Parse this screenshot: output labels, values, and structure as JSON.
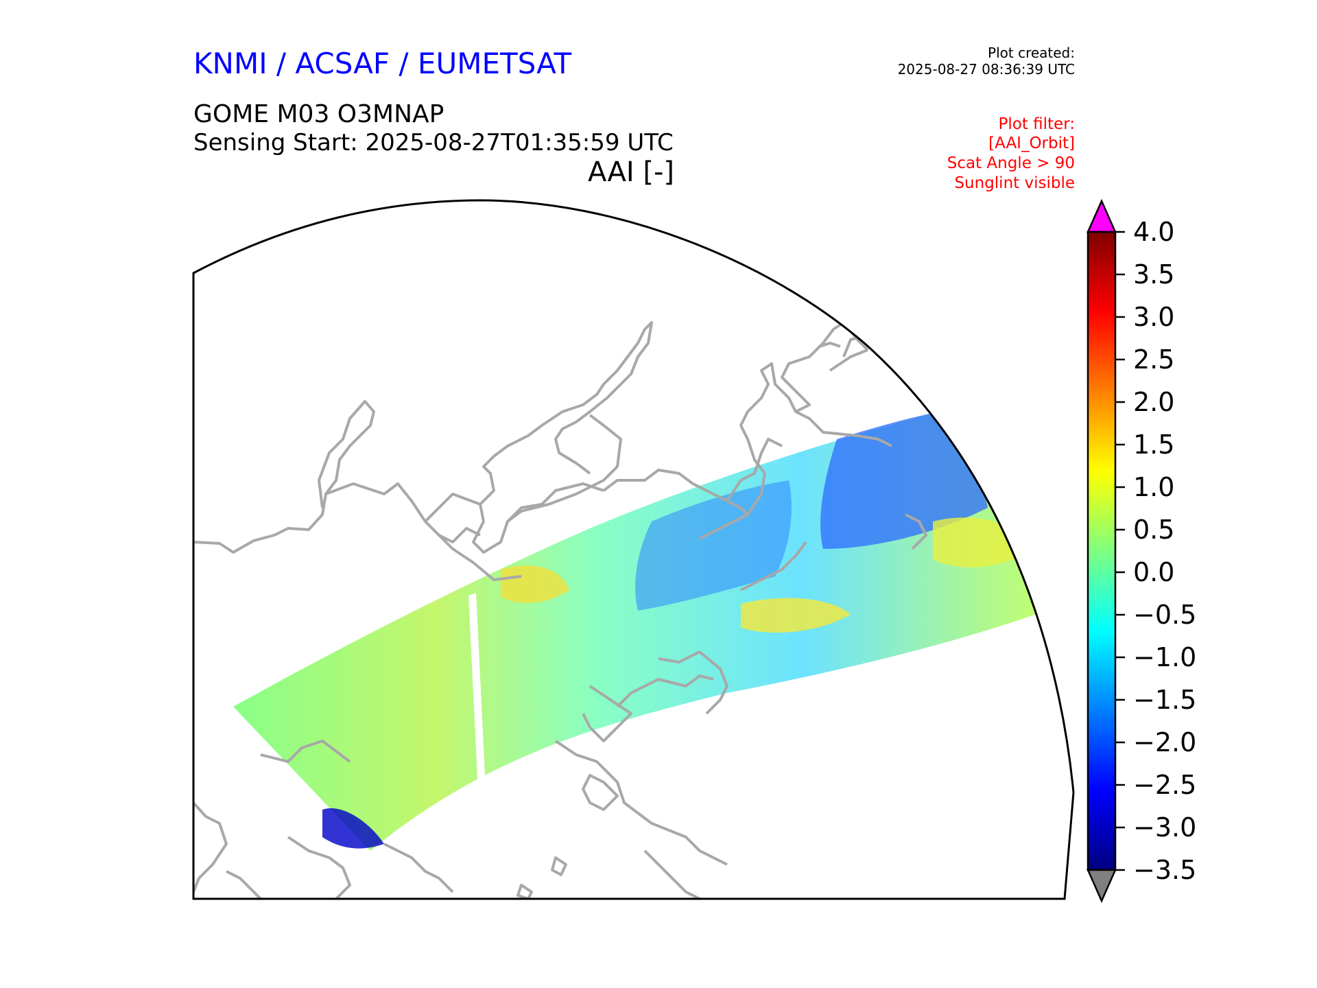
{
  "header": {
    "organisation": "KNMI / ACSAF / EUMETSAT",
    "plot_created_label": "Plot created:",
    "plot_created_time": "2025-08-27 08:36:39 UTC",
    "product": "GOME M03 O3MNAP",
    "sensing_start": "Sensing Start: 2025-08-27T01:35:59 UTC",
    "variable": "AAI [-]",
    "filter_lines": [
      "Plot filter:",
      "[AAI_Orbit]",
      "Scat Angle > 90",
      "Sunglint visible"
    ]
  },
  "colors": {
    "org_title": "#0000ff",
    "filter_text": "#ff0000",
    "coastline": "#a8a8a8",
    "over_range": "#ff00ff",
    "under_range": "#808080",
    "colormap": [
      "#00007f",
      "#0000ff",
      "#007fff",
      "#00ffff",
      "#7fff7f",
      "#ffff00",
      "#ff7f00",
      "#ff0000",
      "#7f0000"
    ]
  },
  "chart_data": {
    "type": "heatmap",
    "colorbar": {
      "label": "AAI [-]",
      "min": -3.5,
      "max": 4.0,
      "ticks": [
        "4.0",
        "3.5",
        "3.0",
        "2.5",
        "2.0",
        "1.5",
        "1.0",
        "0.5",
        "0.0",
        "−0.5",
        "−1.0",
        "−1.5",
        "−2.0",
        "−2.5",
        "−3.0",
        "−3.5"
      ],
      "extend": "both"
    }
  }
}
